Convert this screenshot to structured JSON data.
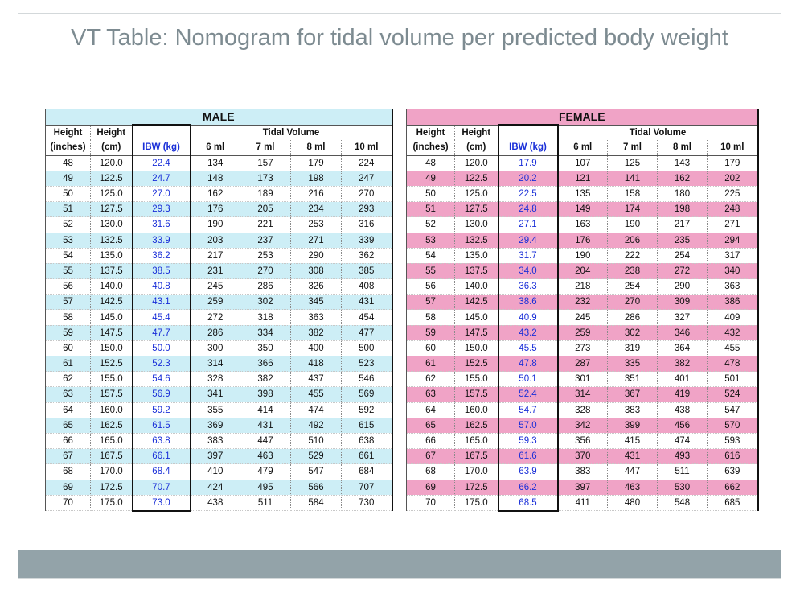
{
  "title": "VT Table: Nomogram for tidal volume per predicted body weight",
  "male": {
    "label": "MALE",
    "headers": {
      "height_in": [
        "Height",
        "(inches)"
      ],
      "height_cm": [
        "Height",
        "(cm)"
      ],
      "ibw": "IBW (kg)",
      "tv": "Tidal Volume",
      "cols": [
        "6 ml",
        "7 ml",
        "8 ml",
        "10 ml"
      ]
    },
    "rows": [
      [
        "48",
        "120.0",
        "22.4",
        "134",
        "157",
        "179",
        "224"
      ],
      [
        "49",
        "122.5",
        "24.7",
        "148",
        "173",
        "198",
        "247"
      ],
      [
        "50",
        "125.0",
        "27.0",
        "162",
        "189",
        "216",
        "270"
      ],
      [
        "51",
        "127.5",
        "29.3",
        "176",
        "205",
        "234",
        "293"
      ],
      [
        "52",
        "130.0",
        "31.6",
        "190",
        "221",
        "253",
        "316"
      ],
      [
        "53",
        "132.5",
        "33.9",
        "203",
        "237",
        "271",
        "339"
      ],
      [
        "54",
        "135.0",
        "36.2",
        "217",
        "253",
        "290",
        "362"
      ],
      [
        "55",
        "137.5",
        "38.5",
        "231",
        "270",
        "308",
        "385"
      ],
      [
        "56",
        "140.0",
        "40.8",
        "245",
        "286",
        "326",
        "408"
      ],
      [
        "57",
        "142.5",
        "43.1",
        "259",
        "302",
        "345",
        "431"
      ],
      [
        "58",
        "145.0",
        "45.4",
        "272",
        "318",
        "363",
        "454"
      ],
      [
        "59",
        "147.5",
        "47.7",
        "286",
        "334",
        "382",
        "477"
      ],
      [
        "60",
        "150.0",
        "50.0",
        "300",
        "350",
        "400",
        "500"
      ],
      [
        "61",
        "152.5",
        "52.3",
        "314",
        "366",
        "418",
        "523"
      ],
      [
        "62",
        "155.0",
        "54.6",
        "328",
        "382",
        "437",
        "546"
      ],
      [
        "63",
        "157.5",
        "56.9",
        "341",
        "398",
        "455",
        "569"
      ],
      [
        "64",
        "160.0",
        "59.2",
        "355",
        "414",
        "474",
        "592"
      ],
      [
        "65",
        "162.5",
        "61.5",
        "369",
        "431",
        "492",
        "615"
      ],
      [
        "66",
        "165.0",
        "63.8",
        "383",
        "447",
        "510",
        "638"
      ],
      [
        "67",
        "167.5",
        "66.1",
        "397",
        "463",
        "529",
        "661"
      ],
      [
        "68",
        "170.0",
        "68.4",
        "410",
        "479",
        "547",
        "684"
      ],
      [
        "69",
        "172.5",
        "70.7",
        "424",
        "495",
        "566",
        "707"
      ],
      [
        "70",
        "175.0",
        "73.0",
        "438",
        "511",
        "584",
        "730"
      ]
    ]
  },
  "female": {
    "label": "FEMALE",
    "headers": {
      "height_in": [
        "Height",
        "(inches)"
      ],
      "height_cm": [
        "Height",
        "(cm)"
      ],
      "ibw": "IBW (kg)",
      "tv": "Tidal Volume",
      "cols": [
        "6 ml",
        "7 ml",
        "8 ml",
        "10 ml"
      ]
    },
    "rows": [
      [
        "48",
        "120.0",
        "17.9",
        "107",
        "125",
        "143",
        "179"
      ],
      [
        "49",
        "122.5",
        "20.2",
        "121",
        "141",
        "162",
        "202"
      ],
      [
        "50",
        "125.0",
        "22.5",
        "135",
        "158",
        "180",
        "225"
      ],
      [
        "51",
        "127.5",
        "24.8",
        "149",
        "174",
        "198",
        "248"
      ],
      [
        "52",
        "130.0",
        "27.1",
        "163",
        "190",
        "217",
        "271"
      ],
      [
        "53",
        "132.5",
        "29.4",
        "176",
        "206",
        "235",
        "294"
      ],
      [
        "54",
        "135.0",
        "31.7",
        "190",
        "222",
        "254",
        "317"
      ],
      [
        "55",
        "137.5",
        "34.0",
        "204",
        "238",
        "272",
        "340"
      ],
      [
        "56",
        "140.0",
        "36.3",
        "218",
        "254",
        "290",
        "363"
      ],
      [
        "57",
        "142.5",
        "38.6",
        "232",
        "270",
        "309",
        "386"
      ],
      [
        "58",
        "145.0",
        "40.9",
        "245",
        "286",
        "327",
        "409"
      ],
      [
        "59",
        "147.5",
        "43.2",
        "259",
        "302",
        "346",
        "432"
      ],
      [
        "60",
        "150.0",
        "45.5",
        "273",
        "319",
        "364",
        "455"
      ],
      [
        "61",
        "152.5",
        "47.8",
        "287",
        "335",
        "382",
        "478"
      ],
      [
        "62",
        "155.0",
        "50.1",
        "301",
        "351",
        "401",
        "501"
      ],
      [
        "63",
        "157.5",
        "52.4",
        "314",
        "367",
        "419",
        "524"
      ],
      [
        "64",
        "160.0",
        "54.7",
        "328",
        "383",
        "438",
        "547"
      ],
      [
        "65",
        "162.5",
        "57.0",
        "342",
        "399",
        "456",
        "570"
      ],
      [
        "66",
        "165.0",
        "59.3",
        "356",
        "415",
        "474",
        "593"
      ],
      [
        "67",
        "167.5",
        "61.6",
        "370",
        "431",
        "493",
        "616"
      ],
      [
        "68",
        "170.0",
        "63.9",
        "383",
        "447",
        "511",
        "639"
      ],
      [
        "69",
        "172.5",
        "66.2",
        "397",
        "463",
        "530",
        "662"
      ],
      [
        "70",
        "175.0",
        "68.5",
        "411",
        "480",
        "548",
        "685"
      ]
    ]
  },
  "colors": {
    "male_band": "#cdeef6",
    "female_band": "#f0a3c6",
    "ibw_text": "#1a2fd8",
    "title_text": "#7d8b91",
    "footer_bar": "#93a3a9"
  }
}
